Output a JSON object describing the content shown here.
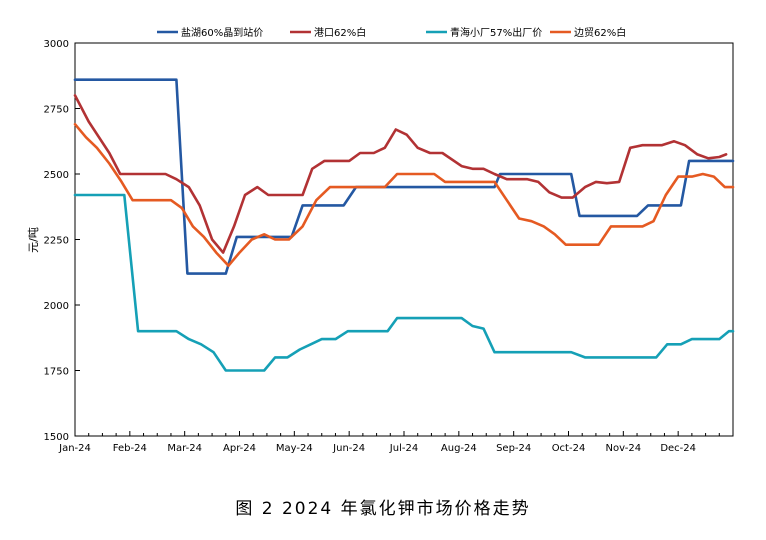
{
  "caption": "图 2  2024 年氯化钾市场价格走势",
  "chart_data": {
    "type": "line",
    "ylabel": "元/吨",
    "ylim": [
      1500,
      3000
    ],
    "yticks": [
      "1500",
      "1750",
      "2000",
      "2250",
      "2500",
      "2750",
      "3000"
    ],
    "xlim": [
      0,
      48
    ],
    "categories": [
      "Jan-24",
      "Feb-24",
      "Mar-24",
      "Apr-24",
      "May-24",
      "Jun-24",
      "Jul-24",
      "Aug-24",
      "Sep-24",
      "Oct-24",
      "Nov-24",
      "Dec-24"
    ],
    "legend_position": "top",
    "grid": false,
    "series": [
      {
        "name": "盐湖60%晶到站价",
        "color": "#2458A2",
        "points": [
          [
            0,
            2860
          ],
          [
            7.4,
            2860
          ],
          [
            8.2,
            2120
          ],
          [
            11,
            2120
          ],
          [
            11.8,
            2260
          ],
          [
            15.8,
            2260
          ],
          [
            16.6,
            2380
          ],
          [
            19.6,
            2380
          ],
          [
            20.5,
            2450
          ],
          [
            30.6,
            2450
          ],
          [
            31,
            2500
          ],
          [
            36.2,
            2500
          ],
          [
            36.8,
            2340
          ],
          [
            41,
            2340
          ],
          [
            41.8,
            2380
          ],
          [
            44.2,
            2380
          ],
          [
            44.8,
            2550
          ],
          [
            48,
            2550
          ]
        ]
      },
      {
        "name": "港口62%白",
        "color": "#B23234",
        "points": [
          [
            0,
            2800
          ],
          [
            1,
            2700
          ],
          [
            2.5,
            2580
          ],
          [
            3.3,
            2500
          ],
          [
            4,
            2500
          ],
          [
            6.6,
            2500
          ],
          [
            7.4,
            2480
          ],
          [
            8.3,
            2450
          ],
          [
            9.1,
            2380
          ],
          [
            10,
            2250
          ],
          [
            10.8,
            2200
          ],
          [
            11.6,
            2300
          ],
          [
            12.4,
            2420
          ],
          [
            13.3,
            2450
          ],
          [
            14.1,
            2420
          ],
          [
            16,
            2420
          ],
          [
            16.6,
            2420
          ],
          [
            17.3,
            2520
          ],
          [
            18.2,
            2550
          ],
          [
            20,
            2550
          ],
          [
            20.8,
            2580
          ],
          [
            21.8,
            2580
          ],
          [
            22.6,
            2600
          ],
          [
            23.4,
            2670
          ],
          [
            24.2,
            2650
          ],
          [
            25,
            2600
          ],
          [
            25.9,
            2580
          ],
          [
            26.8,
            2580
          ],
          [
            28.2,
            2530
          ],
          [
            29,
            2520
          ],
          [
            29.8,
            2520
          ],
          [
            30.6,
            2500
          ],
          [
            31.5,
            2480
          ],
          [
            33,
            2480
          ],
          [
            33.8,
            2470
          ],
          [
            34.6,
            2430
          ],
          [
            35.5,
            2410
          ],
          [
            36.3,
            2410
          ],
          [
            37.2,
            2450
          ],
          [
            38,
            2470
          ],
          [
            38.8,
            2465
          ],
          [
            39.7,
            2470
          ],
          [
            40.5,
            2600
          ],
          [
            41.4,
            2610
          ],
          [
            42.8,
            2610
          ],
          [
            43.7,
            2625
          ],
          [
            44.5,
            2610
          ],
          [
            45.4,
            2575
          ],
          [
            46.2,
            2560
          ],
          [
            47,
            2565
          ],
          [
            47.5,
            2575
          ]
        ]
      },
      {
        "name": "青海小厂57%出厂价",
        "color": "#15A0B6",
        "points": [
          [
            0,
            2420
          ],
          [
            3.6,
            2420
          ],
          [
            4.6,
            1900
          ],
          [
            7.4,
            1900
          ],
          [
            8.3,
            1870
          ],
          [
            9.2,
            1850
          ],
          [
            10.1,
            1820
          ],
          [
            11,
            1750
          ],
          [
            13.8,
            1750
          ],
          [
            14.6,
            1800
          ],
          [
            15.5,
            1800
          ],
          [
            16.4,
            1830
          ],
          [
            17.2,
            1850
          ],
          [
            18,
            1870
          ],
          [
            19,
            1870
          ],
          [
            19.9,
            1900
          ],
          [
            22.8,
            1900
          ],
          [
            23.5,
            1950
          ],
          [
            28.2,
            1950
          ],
          [
            29,
            1920
          ],
          [
            29.8,
            1910
          ],
          [
            30.6,
            1820
          ],
          [
            34.6,
            1820
          ],
          [
            35.4,
            1820
          ],
          [
            36.2,
            1820
          ],
          [
            37.2,
            1800
          ],
          [
            42.4,
            1800
          ],
          [
            43.2,
            1850
          ],
          [
            44.2,
            1850
          ],
          [
            45,
            1870
          ],
          [
            47,
            1870
          ],
          [
            47.7,
            1900
          ],
          [
            48,
            1900
          ]
        ]
      },
      {
        "name": "边贸62%白",
        "color": "#E55A22",
        "points": [
          [
            0,
            2690
          ],
          [
            0.8,
            2640
          ],
          [
            1.6,
            2600
          ],
          [
            2.5,
            2540
          ],
          [
            3.4,
            2470
          ],
          [
            4.2,
            2400
          ],
          [
            7,
            2400
          ],
          [
            7.8,
            2370
          ],
          [
            8.6,
            2300
          ],
          [
            9.4,
            2260
          ],
          [
            10.3,
            2200
          ],
          [
            11.2,
            2150
          ],
          [
            12,
            2200
          ],
          [
            12.9,
            2250
          ],
          [
            13.8,
            2270
          ],
          [
            14.6,
            2250
          ],
          [
            15.6,
            2250
          ],
          [
            16.6,
            2300
          ],
          [
            17.6,
            2400
          ],
          [
            18.6,
            2450
          ],
          [
            22.6,
            2450
          ],
          [
            23.5,
            2500
          ],
          [
            26.2,
            2500
          ],
          [
            27,
            2470
          ],
          [
            30.6,
            2470
          ],
          [
            31.5,
            2400
          ],
          [
            32.4,
            2330
          ],
          [
            33.3,
            2320
          ],
          [
            34.2,
            2300
          ],
          [
            35,
            2270
          ],
          [
            35.8,
            2230
          ],
          [
            38.2,
            2230
          ],
          [
            39.1,
            2300
          ],
          [
            41.4,
            2300
          ],
          [
            42.2,
            2320
          ],
          [
            43.1,
            2420
          ],
          [
            44,
            2490
          ],
          [
            45,
            2490
          ],
          [
            45.8,
            2500
          ],
          [
            46.6,
            2490
          ],
          [
            47.4,
            2450
          ],
          [
            48,
            2450
          ]
        ]
      }
    ]
  }
}
